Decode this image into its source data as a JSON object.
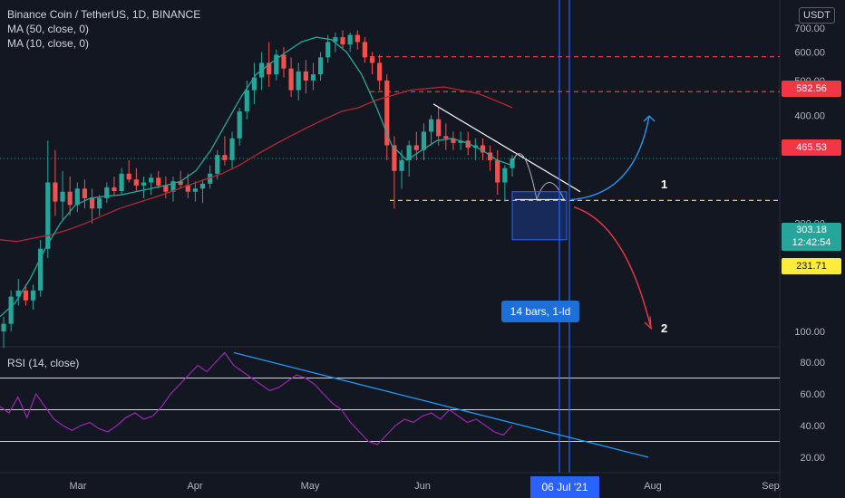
{
  "chart_data": {
    "type": "candlestick",
    "title": "Binance Coin / TetherUS, 1D, BINANCE",
    "indicators": [
      "MA (50, close, 0)",
      "MA (10, close, 0)"
    ],
    "currency": "USDT",
    "price_scale": "log",
    "price_ticks": [
      "700.00",
      "600.00",
      "500.00",
      "400.00",
      "200.00",
      "100.00"
    ],
    "date_ticks": [
      "Mar",
      "Apr",
      "May",
      "Jun",
      "Aug",
      "Sep"
    ],
    "price_levels": [
      {
        "label": "582.56",
        "value": 582.56,
        "color": "#f23645",
        "style": "dashed"
      },
      {
        "label": "465.53",
        "value": 465.53,
        "color": "#f23645",
        "style": "dashed"
      },
      {
        "label": "231.71",
        "value": 231.71,
        "color": "#ffeb3b",
        "style": "dashed"
      }
    ],
    "current_price": {
      "label": "303.18",
      "countdown": "12:42:54",
      "color": "#26a69a"
    },
    "measure_label": "14 bars, 1-ld",
    "cursor_date": "06 Jul '21",
    "scenarios": [
      "1",
      "2"
    ],
    "rsi": {
      "label": "RSI (14, close)",
      "ticks": [
        "80.00",
        "60.00",
        "40.00",
        "20.00"
      ],
      "levels": [
        70,
        50,
        30
      ]
    },
    "candles_approx": [
      [
        100,
        110,
        90,
        105
      ],
      [
        105,
        130,
        100,
        125
      ],
      [
        125,
        140,
        118,
        130
      ],
      [
        130,
        135,
        118,
        122
      ],
      [
        122,
        135,
        115,
        130
      ],
      [
        130,
        180,
        125,
        170
      ],
      [
        170,
        340,
        160,
        260
      ],
      [
        260,
        320,
        210,
        230
      ],
      [
        230,
        280,
        205,
        245
      ],
      [
        245,
        270,
        210,
        225
      ],
      [
        225,
        260,
        215,
        250
      ],
      [
        250,
        265,
        220,
        235
      ],
      [
        235,
        250,
        200,
        220
      ],
      [
        220,
        240,
        210,
        235
      ],
      [
        235,
        260,
        228,
        252
      ],
      [
        252,
        270,
        240,
        246
      ],
      [
        246,
        285,
        240,
        275
      ],
      [
        275,
        300,
        260,
        265
      ],
      [
        265,
        285,
        245,
        255
      ],
      [
        255,
        270,
        235,
        260
      ],
      [
        260,
        275,
        240,
        268
      ],
      [
        268,
        280,
        250,
        255
      ],
      [
        255,
        270,
        235,
        245
      ],
      [
        245,
        270,
        230,
        262
      ],
      [
        262,
        280,
        250,
        256
      ],
      [
        256,
        275,
        235,
        245
      ],
      [
        245,
        262,
        230,
        250
      ],
      [
        250,
        265,
        228,
        258
      ],
      [
        258,
        290,
        250,
        275
      ],
      [
        275,
        320,
        265,
        310
      ],
      [
        310,
        350,
        290,
        300
      ],
      [
        300,
        360,
        285,
        345
      ],
      [
        345,
        420,
        330,
        410
      ],
      [
        410,
        500,
        390,
        470
      ],
      [
        470,
        560,
        430,
        510
      ],
      [
        510,
        600,
        470,
        560
      ],
      [
        560,
        640,
        480,
        520
      ],
      [
        520,
        610,
        500,
        590
      ],
      [
        590,
        620,
        510,
        540
      ],
      [
        540,
        580,
        450,
        470
      ],
      [
        470,
        560,
        440,
        530
      ],
      [
        530,
        570,
        460,
        500
      ],
      [
        500,
        560,
        470,
        520
      ],
      [
        520,
        600,
        500,
        580
      ],
      [
        580,
        670,
        560,
        640
      ],
      [
        640,
        680,
        600,
        660
      ],
      [
        660,
        690,
        610,
        630
      ],
      [
        630,
        680,
        600,
        670
      ],
      [
        670,
        690,
        610,
        640
      ],
      [
        640,
        660,
        560,
        580
      ],
      [
        580,
        600,
        520,
        560
      ],
      [
        560,
        590,
        470,
        500
      ],
      [
        500,
        520,
        300,
        330
      ],
      [
        330,
        350,
        220,
        280
      ],
      [
        280,
        320,
        250,
        300
      ],
      [
        300,
        340,
        270,
        330
      ],
      [
        330,
        360,
        300,
        320
      ],
      [
        320,
        380,
        300,
        360
      ],
      [
        360,
        400,
        330,
        390
      ],
      [
        390,
        420,
        330,
        350
      ],
      [
        350,
        380,
        320,
        345
      ],
      [
        345,
        360,
        320,
        335
      ],
      [
        335,
        360,
        320,
        340
      ],
      [
        340,
        360,
        310,
        325
      ],
      [
        325,
        345,
        300,
        330
      ],
      [
        330,
        345,
        300,
        315
      ],
      [
        315,
        330,
        280,
        300
      ],
      [
        300,
        320,
        240,
        260
      ],
      [
        260,
        290,
        230,
        285
      ],
      [
        285,
        310,
        270,
        303
      ]
    ],
    "ma50_approx": [
      180,
      178,
      182,
      186,
      192,
      200,
      210,
      220,
      228,
      236,
      245,
      255,
      265,
      275,
      290,
      310,
      330,
      350,
      370,
      390,
      410,
      420,
      440,
      455,
      470,
      475,
      480,
      470,
      460,
      440,
      420
    ],
    "ma10_approx": [
      110,
      120,
      140,
      170,
      200,
      225,
      235,
      238,
      240,
      245,
      250,
      255,
      262,
      280,
      320,
      380,
      450,
      520,
      560,
      600,
      640,
      660,
      650,
      600,
      520,
      420,
      330,
      300,
      320,
      340,
      345,
      335,
      320,
      300,
      290
    ],
    "rsi_approx": [
      52,
      48,
      58,
      45,
      60,
      52,
      44,
      40,
      37,
      40,
      42,
      38,
      36,
      40,
      45,
      48,
      44,
      46,
      52,
      60,
      66,
      72,
      78,
      74,
      80,
      86,
      78,
      74,
      70,
      66,
      62,
      64,
      68,
      72,
      70,
      66,
      60,
      54,
      50,
      42,
      36,
      30,
      28,
      34,
      40,
      44,
      42,
      46,
      48,
      44,
      50,
      46,
      42,
      44,
      40,
      36,
      34,
      40
    ]
  }
}
